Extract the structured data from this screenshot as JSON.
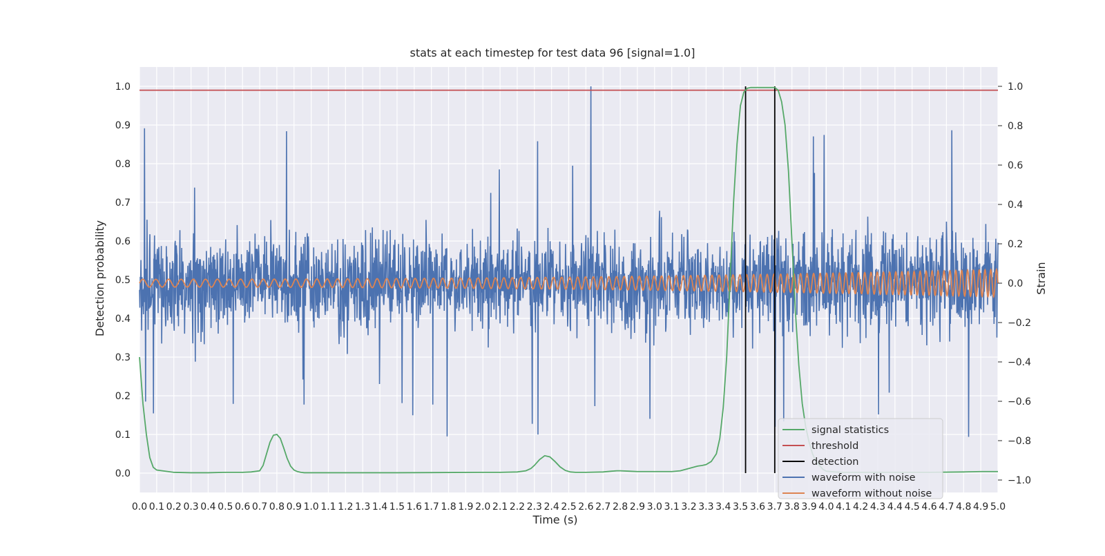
{
  "chart_data": {
    "type": "line",
    "title": "stats at each timestep for test data 96 [signal=1.0]",
    "xlabel": "Time (s)",
    "ylabel_left": "Detection probability",
    "ylabel_right": "Strain",
    "xlim": [
      0.0,
      5.0
    ],
    "ylim_left": [
      -0.05,
      1.05
    ],
    "ylim_right": [
      -1.0,
      1.0
    ],
    "x_tick_labels": [
      "0.0",
      "0.1",
      "0.2",
      "0.3",
      "0.4",
      "0.5",
      "0.6",
      "0.7",
      "0.8",
      "0.9",
      "1.0",
      "1.1",
      "1.2",
      "1.3",
      "1.4",
      "1.5",
      "1.6",
      "1.7",
      "1.8",
      "1.9",
      "2.0",
      "2.1",
      "2.2",
      "2.3",
      "2.4",
      "2.5",
      "2.6",
      "2.7",
      "2.8",
      "2.9",
      "3.0",
      "3.1",
      "3.2",
      "3.3",
      "3.4",
      "3.5",
      "3.6",
      "3.7",
      "3.8",
      "3.9",
      "4.0",
      "4.1",
      "4.2",
      "4.3",
      "4.4",
      "4.5",
      "4.6",
      "4.7",
      "4.8",
      "4.9",
      "5.0"
    ],
    "y_left_tick_labels": [
      "0.0",
      "0.1",
      "0.2",
      "0.3",
      "0.4",
      "0.5",
      "0.6",
      "0.7",
      "0.8",
      "0.9",
      "1.0"
    ],
    "y_right_tick_labels": [
      "−1.0",
      "−0.8",
      "−0.6",
      "−0.4",
      "−0.2",
      "0.0",
      "0.2",
      "0.4",
      "0.6",
      "0.8",
      "1.0"
    ],
    "grid": true,
    "legend_position": "lower-right",
    "background_color": "#eaeaf2",
    "series": [
      {
        "name": "signal statistics",
        "axis": "left",
        "color": "#55a868",
        "x": [
          0.0,
          0.02,
          0.04,
          0.06,
          0.08,
          0.1,
          0.2,
          0.3,
          0.4,
          0.5,
          0.6,
          0.65,
          0.7,
          0.72,
          0.74,
          0.76,
          0.78,
          0.8,
          0.82,
          0.84,
          0.86,
          0.88,
          0.9,
          0.92,
          0.94,
          0.96,
          1.0,
          1.5,
          2.0,
          2.1,
          2.2,
          2.25,
          2.28,
          2.3,
          2.33,
          2.36,
          2.39,
          2.42,
          2.45,
          2.48,
          2.51,
          2.54,
          2.57,
          2.6,
          2.7,
          2.75,
          2.78,
          2.8,
          2.85,
          2.9,
          3.0,
          3.1,
          3.15,
          3.2,
          3.25,
          3.28,
          3.3,
          3.33,
          3.36,
          3.38,
          3.4,
          3.42,
          3.44,
          3.46,
          3.48,
          3.5,
          3.52,
          3.54,
          3.56,
          3.58,
          3.6,
          3.62,
          3.65,
          3.7,
          3.72,
          3.74,
          3.76,
          3.78,
          3.8,
          3.82,
          3.84,
          3.86,
          3.88,
          3.9,
          3.92,
          3.94,
          3.96,
          3.98,
          4.0,
          4.05,
          4.1,
          4.2,
          4.4,
          4.6,
          4.8,
          4.9,
          5.0
        ],
        "y": [
          0.3,
          0.18,
          0.1,
          0.04,
          0.015,
          0.008,
          0.002,
          0.001,
          0.001,
          0.002,
          0.002,
          0.003,
          0.006,
          0.02,
          0.05,
          0.08,
          0.098,
          0.1,
          0.09,
          0.065,
          0.038,
          0.018,
          0.008,
          0.004,
          0.002,
          0.001,
          0.001,
          0.001,
          0.002,
          0.002,
          0.003,
          0.006,
          0.012,
          0.02,
          0.035,
          0.045,
          0.042,
          0.03,
          0.016,
          0.007,
          0.003,
          0.002,
          0.002,
          0.002,
          0.003,
          0.005,
          0.006,
          0.006,
          0.005,
          0.004,
          0.004,
          0.004,
          0.006,
          0.012,
          0.018,
          0.02,
          0.022,
          0.03,
          0.05,
          0.09,
          0.17,
          0.3,
          0.5,
          0.7,
          0.85,
          0.95,
          0.985,
          0.995,
          0.997,
          0.997,
          0.997,
          0.997,
          0.997,
          0.997,
          0.99,
          0.96,
          0.9,
          0.78,
          0.6,
          0.42,
          0.28,
          0.18,
          0.12,
          0.08,
          0.05,
          0.03,
          0.02,
          0.01,
          0.005,
          0.003,
          0.002,
          0.002,
          0.002,
          0.002,
          0.003,
          0.004,
          0.004
        ]
      },
      {
        "name": "threshold",
        "axis": "left",
        "color": "#c44e52",
        "value": 0.99
      },
      {
        "name": "detection",
        "axis": "left",
        "color": "#000000",
        "x": [
          3.53,
          3.7
        ],
        "y_range": [
          0.0,
          1.0
        ]
      },
      {
        "name": "waveform with noise",
        "axis": "right",
        "color": "#4c72b0",
        "amplitude_typical": 0.25,
        "amplitude_max": 1.0,
        "spike_x": 2.63
      },
      {
        "name": "waveform without noise",
        "axis": "right",
        "color": "#dd8452",
        "amplitude_start": 0.02,
        "amplitude_end": 0.07,
        "cycles_per_second_start": 13,
        "cycles_per_second_end": 30
      }
    ]
  }
}
